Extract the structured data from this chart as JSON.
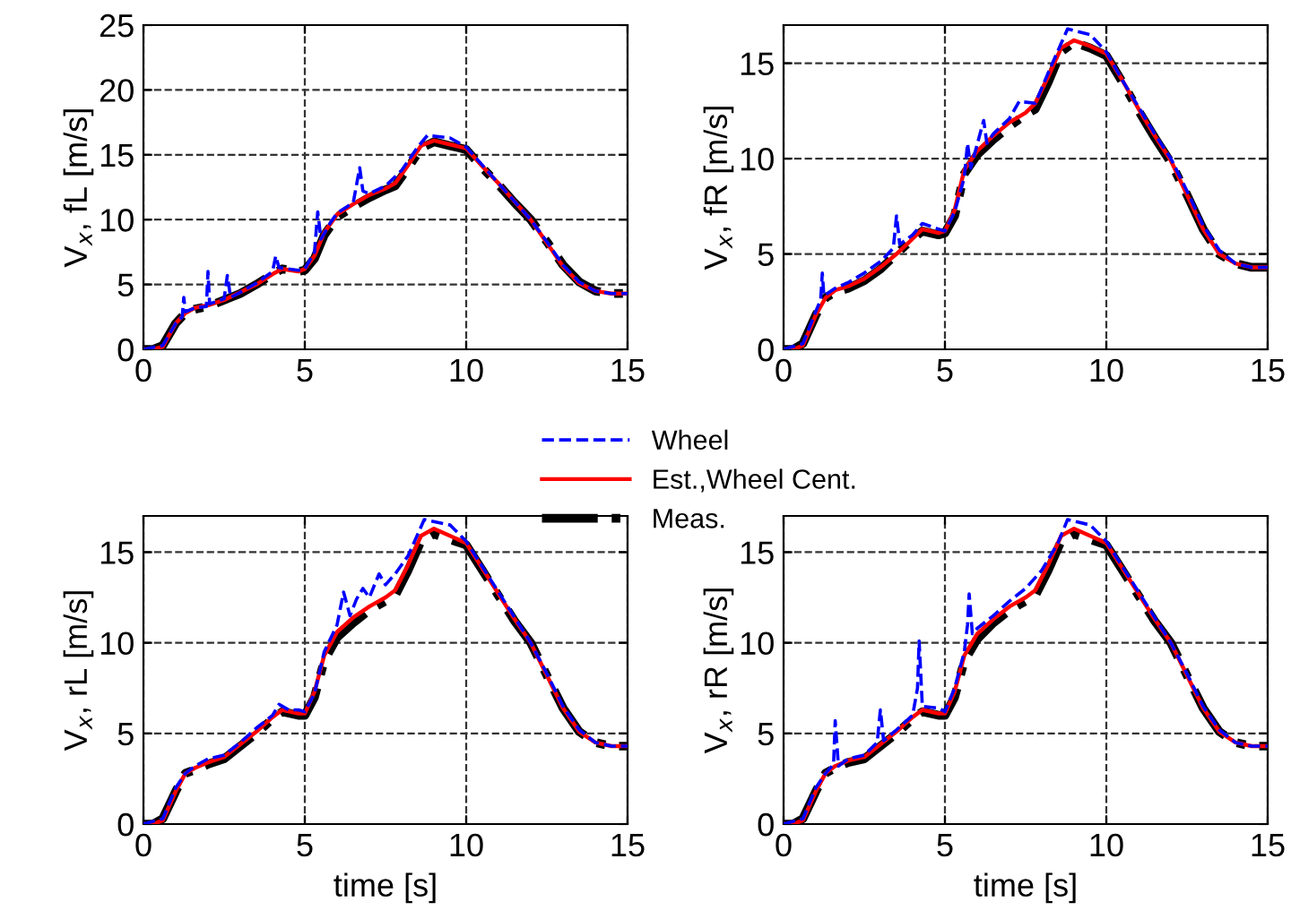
{
  "chart_data": [
    {
      "type": "line",
      "ylabel": "V$_{x}$, fL [m/s]",
      "xlim": [
        0,
        15
      ],
      "xticks": [
        0,
        5,
        10,
        15
      ],
      "ylim": [
        0,
        25
      ],
      "yticks": [
        0,
        5,
        10,
        15,
        20,
        25
      ],
      "grid": true,
      "marker": "none",
      "series": [
        {
          "color": "#0000ff",
          "line_style": "dashed",
          "x": [
            0,
            0.6,
            1,
            1.2,
            1.25,
            1.3,
            1.6,
            1.95,
            2,
            2.05,
            2.5,
            2.6,
            2.7,
            3,
            3.5,
            4,
            4.1,
            4.2,
            4.8,
            5,
            5.3,
            5.4,
            5.5,
            5.8,
            6,
            6.5,
            6.7,
            6.8,
            7,
            7.5,
            8,
            8.5,
            8.8,
            9.5,
            10,
            10.5,
            11,
            11.5,
            12,
            12.5,
            13,
            13.5,
            14,
            14.5,
            15
          ],
          "values": [
            0,
            0.3,
            2,
            2.5,
            4,
            2.9,
            3.2,
            3.3,
            6,
            3.5,
            3.9,
            5.7,
            4,
            4.4,
            5.1,
            6,
            7.2,
            6.3,
            6.1,
            6.2,
            7.5,
            10.6,
            8.5,
            9.8,
            10.5,
            11.3,
            14,
            12.2,
            12,
            12.6,
            13.8,
            15.6,
            16.5,
            16.3,
            15.6,
            14.2,
            12.8,
            11.4,
            10,
            8.3,
            6.5,
            5.2,
            4.5,
            4.3,
            4.3
          ]
        },
        {
          "color": "#ff0000",
          "line_style": "solid",
          "x": [
            0,
            0.3,
            0.6,
            1,
            1.3,
            1.6,
            2,
            2.5,
            3,
            3.5,
            4,
            4.3,
            4.8,
            5,
            5.3,
            5.6,
            6,
            6.5,
            7,
            7.5,
            7.8,
            8.2,
            8.6,
            9,
            9.5,
            10,
            10.5,
            11,
            11.5,
            12,
            12.5,
            13,
            13.5,
            14,
            14.5,
            15
          ],
          "values": [
            0,
            0,
            0.2,
            2,
            2.8,
            3.2,
            3.4,
            3.8,
            4.4,
            5,
            5.8,
            6.2,
            6,
            6.2,
            7.2,
            9,
            10.4,
            11.2,
            11.9,
            12.4,
            12.8,
            14.2,
            15.7,
            16.1,
            15.8,
            15.5,
            14.1,
            12.8,
            11.4,
            10,
            8.2,
            6.4,
            5.1,
            4.5,
            4.3,
            4.3
          ]
        },
        {
          "color": "#000000",
          "line_style": "dashdot",
          "x": [
            0,
            0.3,
            0.6,
            1,
            1.3,
            1.6,
            2,
            2.5,
            3,
            3.5,
            4,
            4.3,
            4.8,
            5,
            5.3,
            5.6,
            6,
            6.5,
            7,
            7.5,
            7.8,
            8.2,
            8.6,
            9,
            9.5,
            10,
            10.5,
            11,
            11.5,
            12,
            12.5,
            13,
            13.5,
            14,
            14.5,
            15
          ],
          "values": [
            0,
            0,
            0.3,
            2,
            2.8,
            3.1,
            3.3,
            3.8,
            4.3,
            5,
            5.8,
            6.2,
            6,
            6.1,
            7,
            8.8,
            10.2,
            11,
            11.7,
            12.3,
            12.6,
            14,
            15.5,
            16,
            15.7,
            15.4,
            14,
            12.7,
            11.3,
            10,
            8.3,
            6.5,
            5.2,
            4.5,
            4.3,
            4.3
          ]
        }
      ]
    },
    {
      "type": "line",
      "ylabel": "V$_{x}$, fR [m/s]",
      "xlim": [
        0,
        15
      ],
      "xticks": [
        0,
        5,
        10,
        15
      ],
      "ylim": [
        0,
        17
      ],
      "yticks": [
        0,
        5,
        10,
        15
      ],
      "grid": true,
      "marker": "none",
      "series": [
        {
          "color": "#0000ff",
          "line_style": "dashed",
          "x": [
            0,
            0.6,
            1,
            1.15,
            1.2,
            1.25,
            1.6,
            2,
            2.5,
            3,
            3.4,
            3.5,
            3.6,
            4,
            4.3,
            4.8,
            5,
            5.3,
            5.6,
            5.7,
            5.8,
            6.2,
            6.3,
            6.5,
            7,
            7.3,
            7.8,
            8.2,
            8.8,
            9.5,
            10,
            10.5,
            11,
            11.5,
            12,
            12.5,
            13,
            13.5,
            14,
            14.5,
            15
          ],
          "values": [
            0,
            0.3,
            2,
            2.6,
            4,
            2.8,
            3.2,
            3.5,
            4,
            4.6,
            5.3,
            7,
            5.5,
            6,
            6.6,
            6.3,
            6.2,
            7.2,
            9,
            10.8,
            9.5,
            12,
            10.8,
            11.3,
            12.1,
            13,
            12.9,
            14.5,
            16.8,
            16.5,
            15.6,
            14.1,
            12.7,
            11.3,
            10,
            8.3,
            6.5,
            5.2,
            4.5,
            4.3,
            4.3
          ]
        },
        {
          "color": "#ff0000",
          "line_style": "solid",
          "x": [
            0,
            0.3,
            0.6,
            1,
            1.3,
            1.6,
            2,
            2.5,
            3,
            3.5,
            4,
            4.3,
            4.8,
            5,
            5.3,
            5.6,
            6,
            6.5,
            7,
            7.5,
            7.8,
            8.2,
            8.6,
            9,
            9.5,
            10,
            10.5,
            11,
            11.5,
            12,
            12.5,
            13,
            13.5,
            14,
            14.5,
            15
          ],
          "values": [
            0,
            0,
            0.2,
            1.8,
            2.7,
            3.1,
            3.3,
            3.7,
            4.3,
            5,
            5.8,
            6.3,
            6.1,
            6.2,
            7.3,
            9.4,
            10.4,
            11.2,
            11.9,
            12.4,
            12.9,
            14.3,
            15.8,
            16.2,
            15.9,
            15.5,
            14.1,
            12.6,
            11.2,
            9.9,
            8.1,
            6.3,
            5,
            4.5,
            4.3,
            4.3
          ]
        },
        {
          "color": "#000000",
          "line_style": "dashdot",
          "x": [
            0,
            0.3,
            0.6,
            1,
            1.3,
            1.6,
            2,
            2.5,
            3,
            3.5,
            4,
            4.3,
            4.8,
            5,
            5.3,
            5.6,
            6,
            6.5,
            7,
            7.5,
            7.8,
            8.2,
            8.6,
            9,
            9.5,
            10,
            10.5,
            11,
            11.5,
            12,
            12.5,
            13,
            13.5,
            14,
            14.5,
            15
          ],
          "values": [
            0,
            0,
            0.3,
            1.8,
            2.7,
            3,
            3.2,
            3.6,
            4.2,
            5,
            5.8,
            6.2,
            6,
            6.1,
            7,
            9.2,
            10.2,
            11,
            11.7,
            12.3,
            12.6,
            14,
            15.6,
            16.1,
            15.8,
            15.4,
            14,
            12.5,
            11.1,
            9.8,
            8.1,
            6.3,
            5,
            4.5,
            4.3,
            4.3
          ]
        }
      ]
    },
    {
      "type": "line",
      "ylabel": "V$_{x}$, rL [m/s]",
      "xlabel": "time [s]",
      "xlim": [
        0,
        15
      ],
      "xticks": [
        0,
        5,
        10,
        15
      ],
      "ylim": [
        0,
        17
      ],
      "yticks": [
        0,
        5,
        10,
        15
      ],
      "grid": true,
      "marker": "none",
      "series": [
        {
          "color": "#0000ff",
          "line_style": "dashed",
          "x": [
            0,
            0.6,
            1,
            1.3,
            1.6,
            2,
            2.5,
            3,
            3.5,
            4,
            4.2,
            4.5,
            4.8,
            5,
            5.3,
            5.6,
            6,
            6.2,
            6.4,
            6.6,
            6.8,
            7,
            7.3,
            7.5,
            7.8,
            8.2,
            8.7,
            9.5,
            10,
            10.5,
            11,
            11.5,
            12,
            12.5,
            13,
            13.5,
            14,
            14.5,
            15
          ],
          "values": [
            0,
            0.3,
            2,
            2.8,
            3.2,
            3.6,
            3.8,
            4.5,
            5.3,
            6,
            6.6,
            6.3,
            6.3,
            6.2,
            7.2,
            9.5,
            11,
            12.8,
            11.5,
            12.4,
            13,
            12.5,
            13.8,
            13.2,
            13.8,
            14.8,
            16.8,
            16.5,
            15.6,
            14.2,
            12.8,
            11.4,
            10,
            8.3,
            6.5,
            5.2,
            4.5,
            4.3,
            4.3
          ]
        },
        {
          "color": "#ff0000",
          "line_style": "solid",
          "x": [
            0,
            0.3,
            0.6,
            1,
            1.3,
            1.6,
            2,
            2.5,
            3,
            3.5,
            4,
            4.3,
            4.8,
            5,
            5.3,
            5.6,
            6,
            6.5,
            7,
            7.5,
            7.8,
            8.2,
            8.6,
            9,
            9.5,
            10,
            10.5,
            11,
            11.5,
            12,
            12.5,
            13,
            13.5,
            14,
            14.5,
            15
          ],
          "values": [
            0,
            0,
            0.2,
            1.8,
            2.8,
            3.1,
            3.4,
            3.7,
            4.4,
            5.1,
            5.9,
            6.3,
            6.1,
            6.1,
            7.3,
            9.3,
            10.6,
            11.4,
            12,
            12.5,
            12.9,
            14.3,
            15.9,
            16.3,
            15.9,
            15.5,
            14.1,
            12.7,
            11.3,
            10,
            8.2,
            6.4,
            5.1,
            4.5,
            4.3,
            4.3
          ]
        },
        {
          "color": "#000000",
          "line_style": "dashdot",
          "x": [
            0,
            0.3,
            0.6,
            1,
            1.3,
            1.6,
            2,
            2.5,
            3,
            3.5,
            4,
            4.3,
            4.8,
            5,
            5.3,
            5.6,
            6,
            6.5,
            7,
            7.5,
            7.8,
            8.2,
            8.6,
            9,
            9.5,
            10,
            10.5,
            11,
            11.5,
            12,
            12.5,
            13,
            13.5,
            14,
            14.5,
            15
          ],
          "values": [
            0,
            0,
            0.3,
            1.8,
            2.8,
            3,
            3.3,
            3.6,
            4.3,
            5,
            5.8,
            6.2,
            6,
            6,
            7,
            9,
            10.3,
            11.1,
            11.8,
            12.3,
            12.6,
            14,
            15.6,
            16,
            15.7,
            15.4,
            14,
            12.6,
            11.2,
            10,
            8.2,
            6.4,
            5.1,
            4.5,
            4.3,
            4.3
          ]
        }
      ]
    },
    {
      "type": "line",
      "ylabel": "V$_{x}$, rR [m/s]",
      "xlabel": "time [s]",
      "xlim": [
        0,
        15
      ],
      "xticks": [
        0,
        5,
        10,
        15
      ],
      "ylim": [
        0,
        17
      ],
      "yticks": [
        0,
        5,
        10,
        15
      ],
      "grid": true,
      "marker": "none",
      "legend": "top left",
      "series": [
        {
          "name": "Wheel",
          "color": "#0000ff",
          "line_style": "dashed",
          "x": [
            0,
            0.6,
            1,
            1.3,
            1.55,
            1.6,
            1.7,
            2,
            2.5,
            2.9,
            3,
            3.1,
            3.5,
            4,
            4.15,
            4.2,
            4.3,
            4.8,
            5,
            5.3,
            5.6,
            5.7,
            5.75,
            5.85,
            6,
            6.5,
            7,
            7.5,
            8,
            8.5,
            8.8,
            9.5,
            10,
            10.5,
            11,
            11.5,
            12,
            12.5,
            13,
            13.5,
            14,
            14.5,
            15
          ],
          "values": [
            0,
            0.3,
            2,
            2.8,
            3.3,
            5.7,
            3.2,
            3.6,
            3.8,
            4.5,
            6.3,
            4.6,
            5.2,
            6,
            7.5,
            10.1,
            6.5,
            6.4,
            6.2,
            7.5,
            9.5,
            11,
            12.7,
            10.5,
            10.8,
            11.5,
            12.3,
            13,
            14,
            15.5,
            16.8,
            16.5,
            15.6,
            14.2,
            12.8,
            11.4,
            10,
            8.3,
            6.5,
            5.2,
            4.5,
            4.3,
            4.3
          ]
        },
        {
          "name": "Est.,Wheel Cent.",
          "color": "#ff0000",
          "line_style": "solid",
          "x": [
            0,
            0.3,
            0.6,
            1,
            1.3,
            1.6,
            2,
            2.5,
            3,
            3.5,
            4,
            4.3,
            4.8,
            5,
            5.3,
            5.6,
            6,
            6.5,
            7,
            7.5,
            7.8,
            8.2,
            8.6,
            9,
            9.5,
            10,
            10.5,
            11,
            11.5,
            12,
            12.5,
            13,
            13.5,
            14,
            14.5,
            15
          ],
          "values": [
            0,
            0,
            0.2,
            1.8,
            2.8,
            3.2,
            3.5,
            3.7,
            4.4,
            5.1,
            5.9,
            6.3,
            6.1,
            6.1,
            7.3,
            9.3,
            10.5,
            11.3,
            12,
            12.5,
            12.9,
            14.3,
            15.9,
            16.3,
            15.9,
            15.5,
            14.1,
            12.7,
            11.3,
            10,
            8.2,
            6.4,
            5.1,
            4.5,
            4.3,
            4.3
          ]
        },
        {
          "name": "Meas.",
          "color": "#000000",
          "line_style": "dashdot",
          "x": [
            0,
            0.3,
            0.6,
            1,
            1.3,
            1.6,
            2,
            2.5,
            3,
            3.5,
            4,
            4.3,
            4.8,
            5,
            5.3,
            5.6,
            6,
            6.5,
            7,
            7.5,
            7.8,
            8.2,
            8.6,
            9,
            9.5,
            10,
            10.5,
            11,
            11.5,
            12,
            12.5,
            13,
            13.5,
            14,
            14.5,
            15
          ],
          "values": [
            0,
            0,
            0.3,
            1.8,
            2.8,
            3.1,
            3.4,
            3.6,
            4.3,
            5,
            5.8,
            6.2,
            6,
            6,
            7,
            9,
            10.2,
            11.1,
            11.8,
            12.3,
            12.6,
            14,
            15.6,
            16,
            15.7,
            15.4,
            14,
            12.6,
            11.2,
            10,
            8.2,
            6.4,
            5.1,
            4.5,
            4.3,
            4.3
          ]
        }
      ]
    }
  ]
}
